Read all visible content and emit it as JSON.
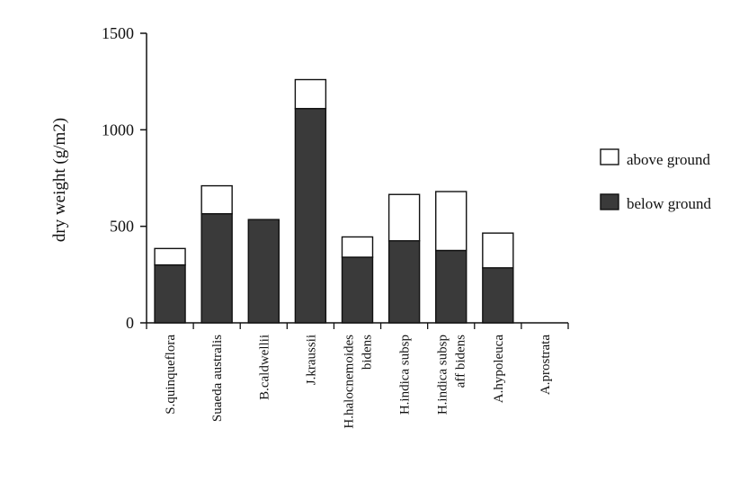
{
  "chart_data": {
    "type": "bar",
    "stacked": true,
    "ylabel": "dry weight (g/m2)",
    "xlabel": "",
    "ylim": [
      0,
      1500
    ],
    "yticks": [
      0,
      500,
      1000,
      1500
    ],
    "grid": false,
    "legend_position": "right",
    "categories": [
      [
        "S.quinqueflora"
      ],
      [
        "Suaeda australis"
      ],
      [
        "B.caldwellii"
      ],
      [
        "J.kraussii"
      ],
      [
        "H.halocnemoides",
        "bidens"
      ],
      [
        "H.indica subsp"
      ],
      [
        "H.indica subsp",
        "aff bidens"
      ],
      [
        "A.hypoleuca"
      ],
      [
        "A.prostrata"
      ]
    ],
    "series": [
      {
        "name": "below ground",
        "color": "#3a3a3a",
        "values": [
          300,
          565,
          535,
          1110,
          340,
          425,
          375,
          285,
          0
        ]
      },
      {
        "name": "above ground",
        "color": "#ffffff",
        "values": [
          85,
          145,
          0,
          150,
          105,
          240,
          305,
          180,
          0
        ]
      }
    ]
  }
}
